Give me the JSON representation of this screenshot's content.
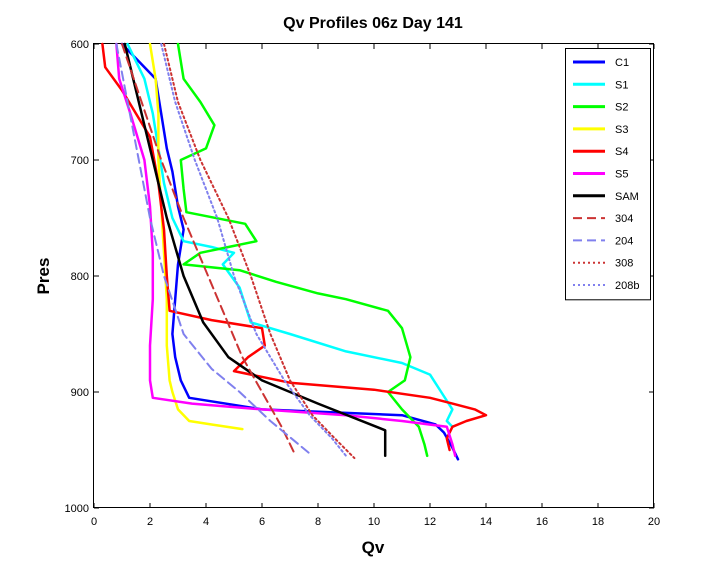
{
  "chart_data": {
    "type": "line",
    "title": "Qv Profiles 06z Day 141",
    "xlabel": "Qv",
    "ylabel": "Pres",
    "xlim": [
      0,
      20
    ],
    "ylim": [
      600,
      1000
    ],
    "y_reversed": true,
    "xticks": [
      0,
      2,
      4,
      6,
      8,
      10,
      12,
      14,
      16,
      18,
      20
    ],
    "yticks": [
      600,
      700,
      800,
      900,
      1000
    ],
    "grid": false,
    "legend_position": "top-right",
    "series": [
      {
        "name": "C1",
        "color": "#0000ff",
        "style": "solid",
        "points": [
          [
            1.0,
            600
          ],
          [
            2.2,
            630
          ],
          [
            2.4,
            660
          ],
          [
            2.6,
            690
          ],
          [
            2.8,
            710
          ],
          [
            3.0,
            740
          ],
          [
            3.2,
            760
          ],
          [
            3.0,
            790
          ],
          [
            2.9,
            820
          ],
          [
            2.8,
            850
          ],
          [
            2.9,
            870
          ],
          [
            3.1,
            890
          ],
          [
            3.4,
            905
          ],
          [
            6,
            915
          ],
          [
            9,
            918
          ],
          [
            11,
            920
          ],
          [
            12.2,
            928
          ],
          [
            12.5,
            935
          ],
          [
            12.8,
            948
          ],
          [
            13.0,
            958
          ]
        ]
      },
      {
        "name": "S1",
        "color": "#00ffff",
        "style": "solid",
        "points": [
          [
            1.2,
            600
          ],
          [
            1.8,
            630
          ],
          [
            2.1,
            660
          ],
          [
            2.3,
            690
          ],
          [
            2.5,
            720
          ],
          [
            2.8,
            750
          ],
          [
            3.2,
            770
          ],
          [
            4.2,
            775
          ],
          [
            5.0,
            780
          ],
          [
            4.6,
            790
          ],
          [
            5.2,
            810
          ],
          [
            5.6,
            840
          ],
          [
            7,
            850
          ],
          [
            9,
            865
          ],
          [
            11,
            875
          ],
          [
            12,
            885
          ],
          [
            12.4,
            900
          ],
          [
            12.8,
            915
          ],
          [
            12.6,
            925
          ],
          [
            12.8,
            930
          ]
        ]
      },
      {
        "name": "S2",
        "color": "#00ff00",
        "style": "solid",
        "points": [
          [
            3.0,
            600
          ],
          [
            3.2,
            630
          ],
          [
            3.8,
            650
          ],
          [
            4.3,
            670
          ],
          [
            4.0,
            690
          ],
          [
            3.1,
            700
          ],
          [
            3.2,
            725
          ],
          [
            3.3,
            745
          ],
          [
            5.4,
            755
          ],
          [
            5.8,
            770
          ],
          [
            4.8,
            775
          ],
          [
            3.8,
            780
          ],
          [
            3.2,
            790
          ],
          [
            5.2,
            795
          ],
          [
            6.5,
            805
          ],
          [
            8,
            815
          ],
          [
            9,
            820
          ],
          [
            10.5,
            830
          ],
          [
            11.0,
            845
          ],
          [
            11.3,
            870
          ],
          [
            11.1,
            890
          ],
          [
            10.5,
            900
          ],
          [
            11.0,
            915
          ],
          [
            11.6,
            930
          ],
          [
            11.8,
            945
          ],
          [
            11.9,
            955
          ]
        ]
      },
      {
        "name": "S3",
        "color": "#ffff00",
        "style": "solid",
        "points": [
          [
            2.0,
            600
          ],
          [
            2.2,
            630
          ],
          [
            2.3,
            660
          ],
          [
            2.3,
            700
          ],
          [
            2.4,
            740
          ],
          [
            2.5,
            780
          ],
          [
            2.6,
            820
          ],
          [
            2.6,
            860
          ],
          [
            2.7,
            890
          ],
          [
            2.8,
            900
          ],
          [
            3.0,
            915
          ],
          [
            3.4,
            925
          ],
          [
            4.2,
            928
          ],
          [
            5.3,
            932
          ]
        ]
      },
      {
        "name": "S4",
        "color": "#ff0000",
        "style": "solid",
        "points": [
          [
            0.3,
            600
          ],
          [
            0.4,
            620
          ],
          [
            1.0,
            640
          ],
          [
            1.5,
            660
          ],
          [
            2.0,
            680
          ],
          [
            2.3,
            720
          ],
          [
            2.5,
            760
          ],
          [
            2.6,
            800
          ],
          [
            2.7,
            830
          ],
          [
            4.2,
            838
          ],
          [
            6.0,
            845
          ],
          [
            6.1,
            860
          ],
          [
            5.5,
            870
          ],
          [
            5.0,
            882
          ],
          [
            7,
            892
          ],
          [
            10,
            898
          ],
          [
            12,
            905
          ],
          [
            12.8,
            910
          ],
          [
            13.6,
            915
          ],
          [
            14.0,
            920
          ],
          [
            13.3,
            925
          ],
          [
            12.8,
            930
          ],
          [
            12.6,
            940
          ],
          [
            12.7,
            950
          ]
        ]
      },
      {
        "name": "S5",
        "color": "#ff00ff",
        "style": "solid",
        "points": [
          [
            0.8,
            600
          ],
          [
            0.9,
            630
          ],
          [
            1.3,
            660
          ],
          [
            1.8,
            700
          ],
          [
            2.0,
            740
          ],
          [
            2.1,
            780
          ],
          [
            2.1,
            820
          ],
          [
            2.0,
            860
          ],
          [
            2.0,
            890
          ],
          [
            2.1,
            905
          ],
          [
            3.5,
            910
          ],
          [
            6,
            915
          ],
          [
            9,
            920
          ],
          [
            11,
            925
          ],
          [
            12.6,
            930
          ],
          [
            12.8,
            945
          ],
          [
            12.9,
            955
          ]
        ]
      },
      {
        "name": "SAM",
        "color": "#000000",
        "style": "solid",
        "points": [
          [
            1.1,
            600
          ],
          [
            1.6,
            650
          ],
          [
            2.1,
            700
          ],
          [
            2.6,
            750
          ],
          [
            3.2,
            800
          ],
          [
            3.9,
            840
          ],
          [
            4.8,
            870
          ],
          [
            6.0,
            890
          ],
          [
            8.0,
            910
          ],
          [
            10.4,
            933
          ],
          [
            10.4,
            945
          ],
          [
            10.4,
            955
          ]
        ]
      },
      {
        "name": "304",
        "color": "#cc3333",
        "style": "dashed",
        "points": [
          [
            1.0,
            600
          ],
          [
            1.7,
            650
          ],
          [
            2.4,
            700
          ],
          [
            3.2,
            750
          ],
          [
            3.9,
            790
          ],
          [
            4.6,
            830
          ],
          [
            5.3,
            870
          ],
          [
            6.0,
            900
          ],
          [
            6.7,
            930
          ],
          [
            7.2,
            955
          ]
        ]
      },
      {
        "name": "204",
        "color": "#8080ee",
        "style": "dashed",
        "points": [
          [
            0.8,
            600
          ],
          [
            1.2,
            650
          ],
          [
            1.6,
            700
          ],
          [
            2.0,
            750
          ],
          [
            2.5,
            800
          ],
          [
            3.2,
            850
          ],
          [
            4.2,
            880
          ],
          [
            5.2,
            900
          ],
          [
            6.3,
            925
          ],
          [
            7.8,
            955
          ]
        ]
      },
      {
        "name": "308",
        "color": "#cc3333",
        "style": "dotted",
        "points": [
          [
            2.5,
            600
          ],
          [
            3.0,
            650
          ],
          [
            3.8,
            700
          ],
          [
            4.8,
            750
          ],
          [
            5.6,
            800
          ],
          [
            6.3,
            850
          ],
          [
            7.0,
            890
          ],
          [
            7.8,
            920
          ],
          [
            8.6,
            940
          ],
          [
            9.3,
            957
          ]
        ]
      },
      {
        "name": "208b",
        "color": "#8080ee",
        "style": "dotted",
        "points": [
          [
            2.4,
            600
          ],
          [
            2.9,
            650
          ],
          [
            3.6,
            700
          ],
          [
            4.4,
            750
          ],
          [
            5.0,
            800
          ],
          [
            5.8,
            850
          ],
          [
            6.8,
            890
          ],
          [
            7.7,
            920
          ],
          [
            8.5,
            940
          ],
          [
            9.0,
            955
          ]
        ]
      }
    ]
  }
}
